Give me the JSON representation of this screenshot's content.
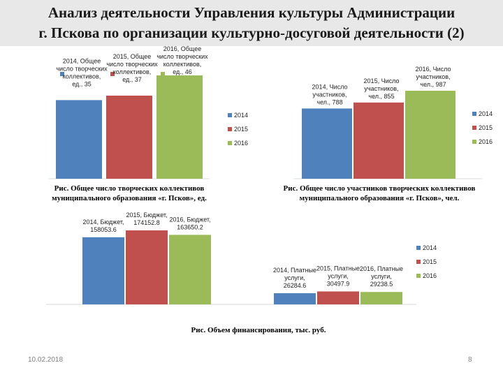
{
  "title_line1": "Анализ деятельности Управления культуры Администрации",
  "title_line2": "г. Пскова по организации культурно-досуговой деятельности (2)",
  "colors": {
    "2014": "#4f81bd",
    "2015": "#c0504d",
    "2016": "#9bbb59"
  },
  "chart_data": [
    {
      "type": "bar",
      "categories": [
        "2014",
        "2015",
        "2016"
      ],
      "values": [
        35,
        37,
        46
      ],
      "data_labels": [
        "2014, Общее число творческих коллективов, ед., 35",
        "2015, Общее число творческих коллективов, ед., 37",
        "2016, Общее число творческих коллективов, ед., 46"
      ],
      "legend": [
        "2014",
        "2015",
        "2016"
      ],
      "legend_position": "right",
      "caption": "Рис. Общее число творческих коллективов муниципального образования «г. Псков», ед."
    },
    {
      "type": "bar",
      "categories": [
        "2014",
        "2015",
        "2016"
      ],
      "values": [
        788,
        855,
        987
      ],
      "data_labels": [
        "2014, Число участников, чел., 788",
        "2015, Число участников, чел., 855",
        "2016, Число участников, чел., 987"
      ],
      "legend": [
        "2014",
        "2015",
        "2016"
      ],
      "legend_position": "right",
      "caption": "Рис. Общее число участников творческих коллективов муниципального образования «г. Псков», чел."
    },
    {
      "type": "bar",
      "categories": [
        "Бюджет",
        "Платные услуги"
      ],
      "series": [
        {
          "name": "2014",
          "values": [
            158053.6,
            26284.6
          ]
        },
        {
          "name": "2015",
          "values": [
            174152.8,
            30497.9
          ]
        },
        {
          "name": "2016",
          "values": [
            163650.2,
            29238.5
          ]
        }
      ],
      "data_labels": [
        [
          "2014, Бюджет, 158053.6",
          "2015, Бюджет, 174152.8",
          "2016, Бюджет, 163650.2"
        ],
        [
          "2014, Платные услуги, 26284.6",
          "2015, Платные услуги, 30497.9",
          "2016, Платные услуги, 29238.5"
        ]
      ],
      "legend": [
        "2014",
        "2015",
        "2016"
      ],
      "legend_position": "right",
      "caption": "Рис. Объем финансирования, тыс. руб."
    }
  ],
  "footer": {
    "date": "10.02.2018",
    "page": "8"
  }
}
